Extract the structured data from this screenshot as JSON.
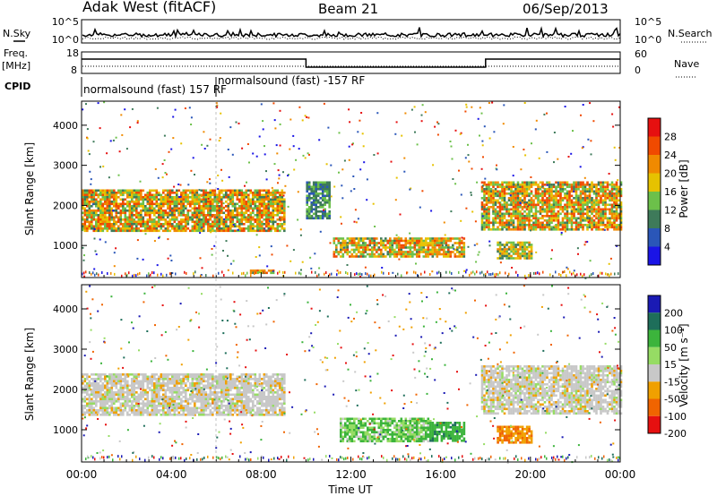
{
  "header": {
    "station": "Adak West (fitACF)",
    "beam": "Beam 21",
    "date": "06/Sep/2013"
  },
  "top_panels": {
    "nsky_label": "N.Sky",
    "nsearch_label": "N.Search",
    "noise_ticks": [
      "10^5",
      "10^0"
    ],
    "freq_label": "Freq.",
    "freq_unit": "[MHz]",
    "freq_ticks": [
      "18",
      "8"
    ],
    "nave_label": "Nave",
    "nave_ticks": [
      "60",
      "0"
    ],
    "cpid_label": "CPID",
    "cpid_entries": [
      {
        "name": "normalsound (fast) 157 RF",
        "start_hour": 0
      },
      {
        "name": "normalsound (fast) -157 RF",
        "start_hour": 6
      }
    ],
    "freq_steps": [
      {
        "from_hour": 0,
        "to_hour": 10,
        "level": "high"
      },
      {
        "from_hour": 10,
        "to_hour": 18,
        "level": "low"
      },
      {
        "from_hour": 18,
        "to_hour": 24,
        "level": "high"
      }
    ]
  },
  "chart_data": [
    {
      "type": "heatmap",
      "name": "power",
      "title": "",
      "xlabel": "",
      "ylabel": "Slant Range [km]",
      "xlim": [
        0,
        24
      ],
      "ylim": [
        200,
        4600
      ],
      "y_ticks": [
        1000,
        2000,
        3000,
        4000
      ],
      "colorbar": {
        "label": "Power [dB]",
        "tick_labels": [
          "4",
          "8",
          "12",
          "16",
          "20",
          "24",
          "28"
        ],
        "colors": [
          "#1a14e6",
          "#2a56b8",
          "#3e7a5a",
          "#6cc04a",
          "#e6c200",
          "#f08a00",
          "#f04a00",
          "#e61010"
        ]
      },
      "echo_regions": [
        {
          "x_start": 0.0,
          "x_end": 9.0,
          "range_bottom_km": 1350,
          "range_top_km": 2400,
          "peak_power_db": 28
        },
        {
          "x_start": 10.0,
          "x_end": 11.0,
          "range_bottom_km": 1700,
          "range_top_km": 2600,
          "peak_power_db": 16
        },
        {
          "x_start": 11.2,
          "x_end": 17.0,
          "range_bottom_km": 700,
          "range_top_km": 1200,
          "peak_power_db": 28
        },
        {
          "x_start": 17.8,
          "x_end": 24.0,
          "range_bottom_km": 1400,
          "range_top_km": 2600,
          "peak_power_db": 28
        },
        {
          "x_start": 18.5,
          "x_end": 20.0,
          "range_bottom_km": 700,
          "range_top_km": 1100,
          "peak_power_db": 24
        },
        {
          "x_start": 7.5,
          "x_end": 8.5,
          "range_bottom_km": 300,
          "range_top_km": 400,
          "peak_power_db": 28
        }
      ]
    },
    {
      "type": "heatmap",
      "name": "velocity",
      "title": "",
      "xlabel": "Time UT",
      "ylabel": "Slant Range [km]",
      "xlim": [
        0,
        24
      ],
      "ylim": [
        200,
        4600
      ],
      "x_ticks": [
        "00:00",
        "04:00",
        "08:00",
        "12:00",
        "16:00",
        "20:00",
        "00:00"
      ],
      "y_ticks": [
        1000,
        2000,
        3000,
        4000
      ],
      "colorbar": {
        "label": "Velocity [m s⁻¹]",
        "tick_labels": [
          "200",
          "100",
          "50",
          "15",
          "-15",
          "-50",
          "-100",
          "-200"
        ],
        "colors": [
          "#1a1ab4",
          "#1e6e5a",
          "#3cb43c",
          "#96dc64",
          "#c8c8c8",
          "#f0a000",
          "#f06400",
          "#e61010"
        ]
      },
      "echo_regions": [
        {
          "x_start": 0.0,
          "x_end": 9.0,
          "range_bottom_km": 1350,
          "range_top_km": 2400,
          "velocity_ms": 0
        },
        {
          "x_start": 11.5,
          "x_end": 15.5,
          "range_bottom_km": 700,
          "range_top_km": 1300,
          "velocity_ms": 30
        },
        {
          "x_start": 15.5,
          "x_end": 17.0,
          "range_bottom_km": 700,
          "range_top_km": 1200,
          "velocity_ms": 60
        },
        {
          "x_start": 17.8,
          "x_end": 24.0,
          "range_bottom_km": 1400,
          "range_top_km": 2600,
          "velocity_ms": 0
        },
        {
          "x_start": 18.5,
          "x_end": 20.0,
          "range_bottom_km": 700,
          "range_top_km": 1100,
          "velocity_ms": -50
        }
      ]
    }
  ]
}
